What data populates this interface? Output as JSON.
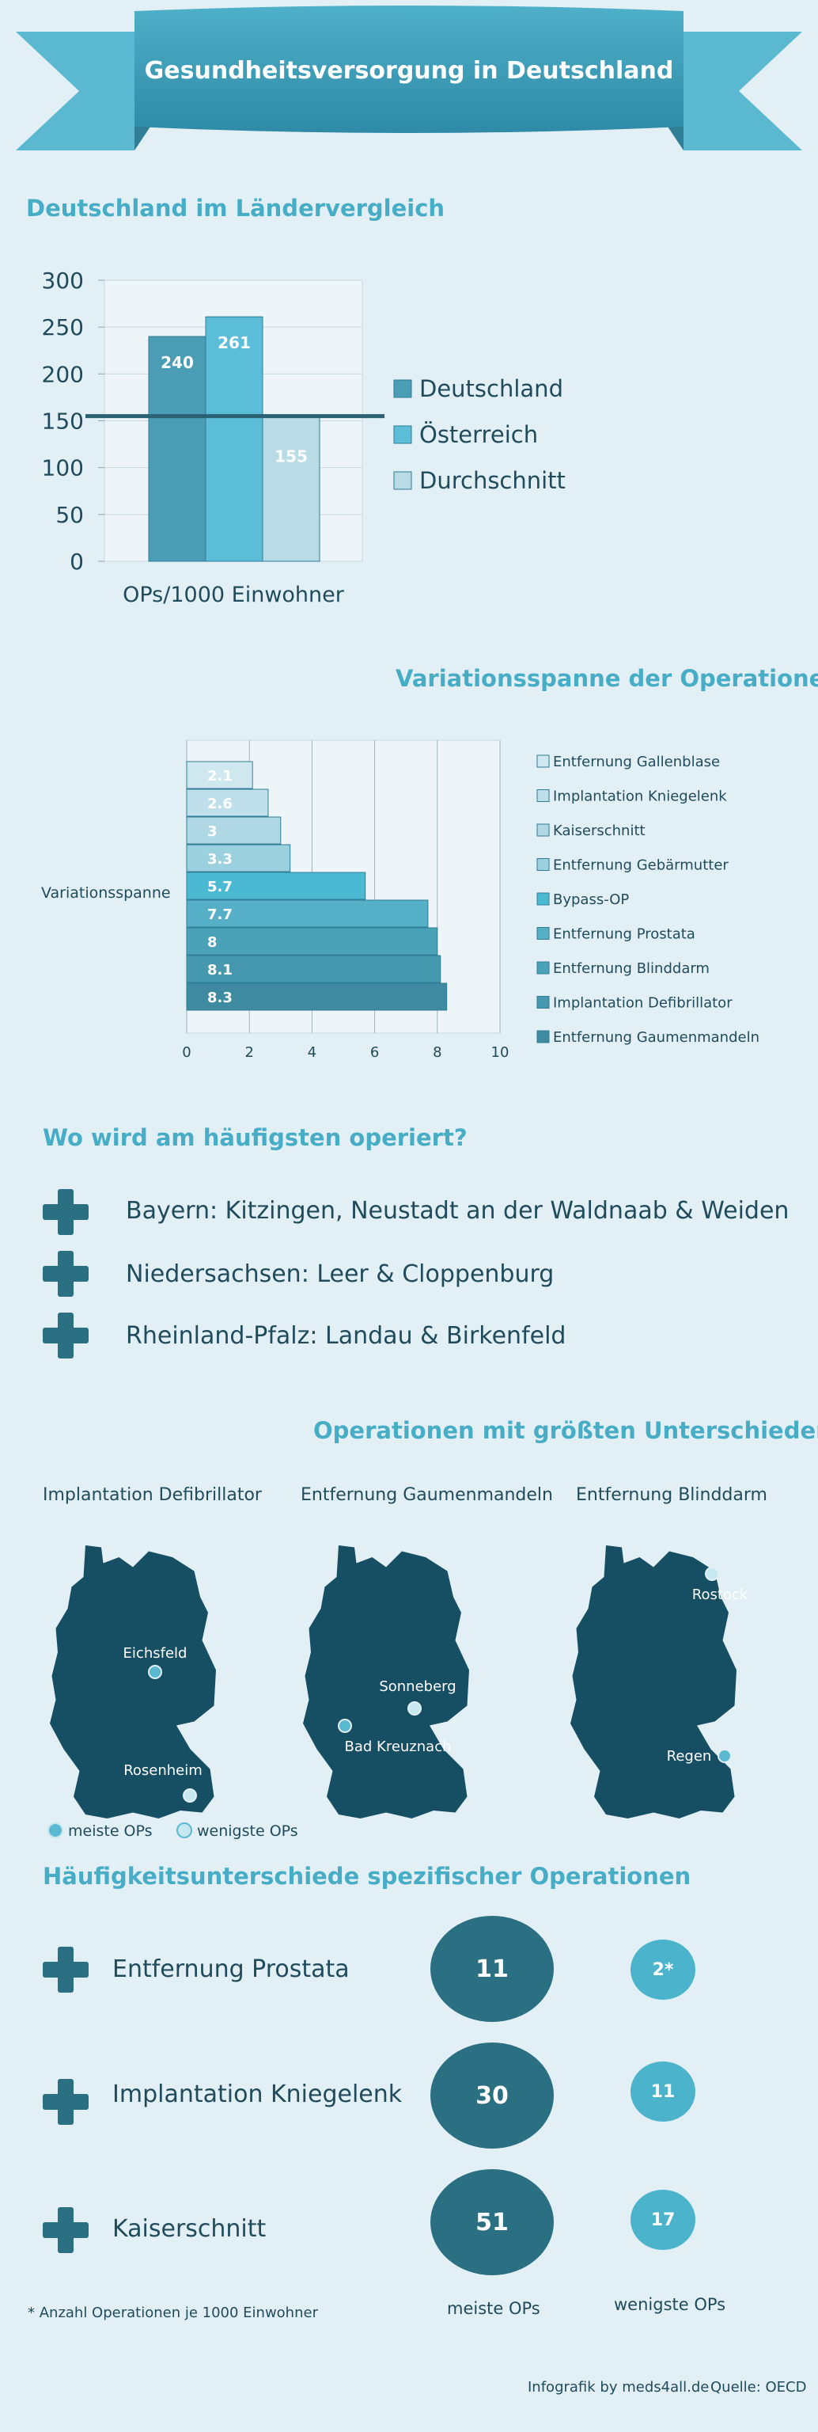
{
  "banner": {
    "title": "Gesundheitsversorgung in Deutschland"
  },
  "colors": {
    "background": "#e2eff5",
    "title_teal": "#47adc6",
    "dark_teal": "#2a6f82",
    "deutschland": "#4a9db5",
    "oesterreich": "#5bbdd7",
    "durchschnitt": "#b9dbe5"
  },
  "chart_data": [
    {
      "type": "bar",
      "title": "Deutschland im Ländervergleich",
      "xlabel": "OPs/1000 Einwohner",
      "ylim": [
        0,
        300
      ],
      "yticks": [
        "0",
        "50",
        "100",
        "150",
        "200",
        "250",
        "300"
      ],
      "grid": true,
      "legend_position": "right",
      "series": [
        {
          "name": "Deutschland",
          "values": [
            240
          ]
        },
        {
          "name": "Österreich",
          "values": [
            261
          ]
        },
        {
          "name": "Durchschnitt",
          "values": [
            155
          ]
        }
      ],
      "reference_line": 155
    },
    {
      "type": "bar",
      "orientation": "horizontal",
      "title": "Variationsspanne der Operationen",
      "ylabel": "Variationsspanne",
      "xlim": [
        0,
        10
      ],
      "xticks": [
        "0",
        "2",
        "4",
        "6",
        "8",
        "10"
      ],
      "legend_position": "right",
      "categories": [
        "Entfernung Gallenblase",
        "Implantation Kniegelenk",
        "Kaiserschnitt",
        "Entfernung Gebärmutter",
        "Bypass-OP",
        "Entfernung Prostata",
        "Entfernung Blinddarm",
        "Implantation Defibrillator",
        "Entfernung Gaumenmandeln"
      ],
      "values": [
        2.1,
        2.6,
        3,
        3.3,
        5.7,
        7.7,
        8,
        8.1,
        8.3
      ],
      "labels": [
        "2.1",
        "2.6",
        "3",
        "3.3",
        "5.7",
        "7.7",
        "8",
        "8.1",
        "8.3"
      ]
    }
  ],
  "operiert": {
    "title": "Wo wird am häufigsten operiert?",
    "items": [
      "Bayern: Kitzingen, Neustadt an der Waldnaab & Weiden",
      "Niedersachsen: Leer & Cloppenburg",
      "Rheinland-Pfalz: Landau & Birkenfeld"
    ]
  },
  "maps": {
    "title": "Operationen mit größten Unterschieden",
    "items": [
      {
        "caption": "Implantation Defibrillator",
        "label_a": "Eichsfeld",
        "label_b": "Rosenheim"
      },
      {
        "caption": "Entfernung Gaumenmandeln",
        "label_a": "Sonneberg",
        "label_b": "Bad Kreuznach"
      },
      {
        "caption": "Entfernung Blinddarm",
        "label_a": "Rostock",
        "label_b": "Regen"
      }
    ],
    "legend": {
      "meiste": "meiste OPs",
      "wenigste": "wenigste OPs"
    }
  },
  "haeufigkeit": {
    "title": "Häufigkeitsunterschiede spezifischer Operationen",
    "rows": [
      {
        "name": "Entfernung Prostata",
        "meiste": "11",
        "wenigste": "2*"
      },
      {
        "name": "Implantation Kniegelenk",
        "meiste": "30",
        "wenigste": "11"
      },
      {
        "name": "Kaiserschnitt",
        "meiste": "51",
        "wenigste": "17"
      }
    ],
    "footnote": "* Anzahl Operationen je 1000 Einwohner",
    "col_meiste": "meiste OPs",
    "col_wenigste": "wenigste OPs"
  },
  "footer": {
    "credit": "Infografik by meds4all.de",
    "source": "Quelle: OECD"
  }
}
